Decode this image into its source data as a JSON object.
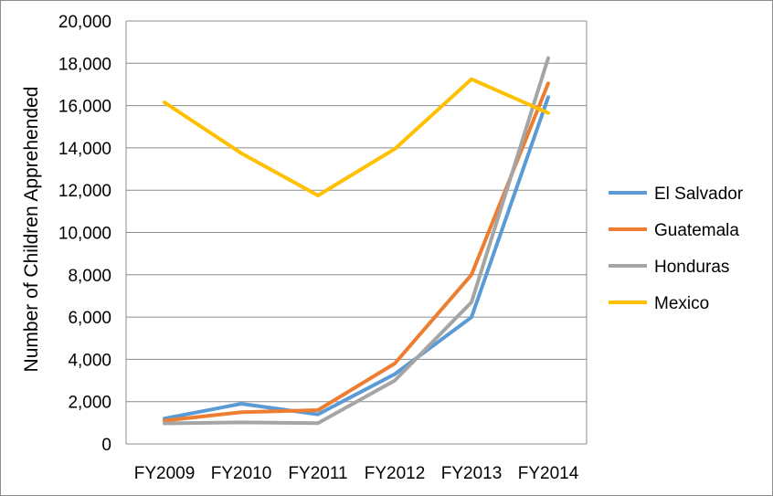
{
  "chart_data": {
    "type": "line",
    "title": "",
    "xlabel": "",
    "ylabel": "Number of Children Apprehended",
    "categories": [
      "FY2009",
      "FY2010",
      "FY2011",
      "FY2012",
      "FY2013",
      "FY2014"
    ],
    "ylim": [
      0,
      20000
    ],
    "yticks": [
      0,
      2000,
      4000,
      6000,
      8000,
      10000,
      12000,
      14000,
      16000,
      18000,
      20000
    ],
    "ytick_labels": [
      "0",
      "2,000",
      "4,000",
      "6,000",
      "8,000",
      "10,000",
      "12,000",
      "14,000",
      "16,000",
      "18,000",
      "20,000"
    ],
    "grid": true,
    "legend_position": "right",
    "series": [
      {
        "name": "El Salvador",
        "color": "#5B9BD5",
        "values": [
          1200,
          1900,
          1400,
          3300,
          5990,
          16400
        ]
      },
      {
        "name": "Guatemala",
        "color": "#ED7D31",
        "values": [
          1100,
          1500,
          1600,
          3800,
          8000,
          17050
        ]
      },
      {
        "name": "Honduras",
        "color": "#A5A5A5",
        "values": [
          970,
          1020,
          980,
          3000,
          6700,
          18250
        ]
      },
      {
        "name": "Mexico",
        "color": "#FFC000",
        "values": [
          16150,
          13750,
          11750,
          13950,
          17250,
          15650
        ]
      }
    ]
  }
}
